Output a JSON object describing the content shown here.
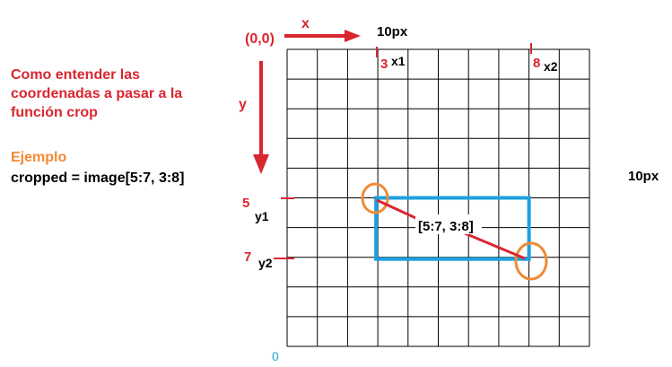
{
  "intro_text": [
    "Como entender las",
    "coordenadas a pasar a la",
    "función crop"
  ],
  "example_heading": "Ejemplo",
  "example_code": "cropped = image[5:7, 3:8]",
  "origin_label": "(0,0)",
  "x_axis_label": "x",
  "y_axis_label": "y",
  "width_label": "10px",
  "height_label": "10px",
  "bottom_zero": "0",
  "x1_value": "3",
  "x1_label": "x1",
  "x2_value": "8",
  "x2_label": "x2",
  "y1_value": "5",
  "y1_label": "y1",
  "y2_value": "7",
  "y2_label": "y2",
  "slice_label": "[5:7, 3:8]",
  "grid": {
    "cols": 10,
    "rows": 10
  },
  "crop": {
    "y_start": 5,
    "y_end": 7,
    "x_start": 3,
    "x_end": 8
  },
  "colors": {
    "red": "#d9262f",
    "orange": "#f08a33",
    "blue": "#1ea0e0",
    "cyan": "#2ba3d9",
    "black": "#000000"
  }
}
